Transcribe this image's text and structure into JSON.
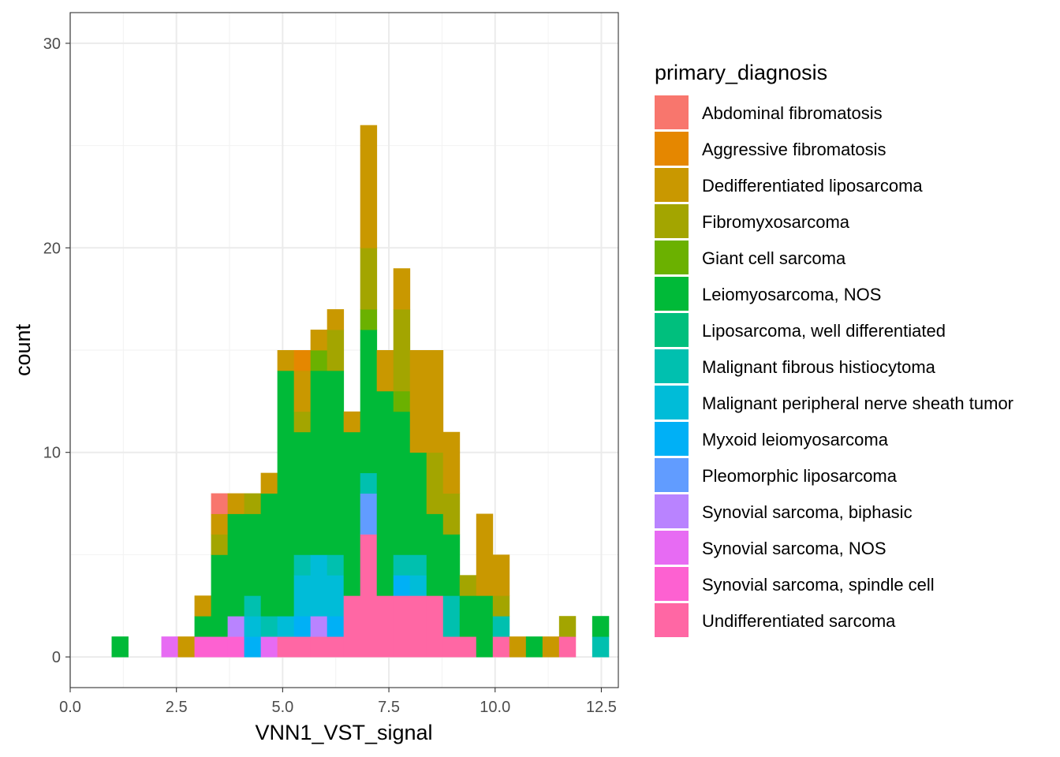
{
  "chart_data": {
    "type": "bar",
    "subtype": "stacked-histogram",
    "title": "",
    "xlabel": "VNN1_VST_signal",
    "ylabel": "count",
    "xlim": [
      0,
      12.9
    ],
    "ylim": [
      -1.5,
      31.5
    ],
    "grid": true,
    "legend_position": "right",
    "legend_title": "primary_diagnosis",
    "x_ticks": [
      0,
      2.5,
      5,
      7.5,
      10,
      12.5
    ],
    "x_tick_labels": [
      "0.0",
      "2.5",
      "5.0",
      "7.5",
      "10.0",
      "12.5"
    ],
    "y_ticks": [
      0,
      10,
      20,
      30
    ],
    "y_tick_labels": [
      "0",
      "10",
      "20",
      "30"
    ],
    "bin_width": 0.39,
    "bin_centers": [
      0.78,
      1.17,
      1.56,
      1.95,
      2.34,
      2.73,
      3.12,
      3.51,
      3.9,
      4.29,
      4.68,
      5.07,
      5.46,
      5.85,
      6.24,
      6.63,
      7.02,
      7.41,
      7.8,
      8.19,
      8.58,
      8.97,
      9.36,
      9.75,
      10.14,
      10.53,
      10.92,
      11.31,
      11.7,
      12.09,
      12.48
    ],
    "series": [
      {
        "name": "Abdominal fibromatosis",
        "color": "#F8766D",
        "values": [
          0,
          0,
          0,
          0,
          0,
          0,
          0,
          1,
          0,
          0,
          0,
          0,
          0,
          0,
          0,
          0,
          0,
          0,
          0,
          0,
          0,
          0,
          0,
          0,
          0,
          0,
          0,
          0,
          0,
          0,
          0
        ]
      },
      {
        "name": "Aggressive fibromatosis",
        "color": "#E58700",
        "values": [
          0,
          0,
          0,
          0,
          0,
          0,
          0,
          0,
          0,
          0,
          0,
          0,
          1,
          0,
          0,
          0,
          0,
          0,
          0,
          0,
          0,
          0,
          0,
          0,
          0,
          0,
          0,
          0,
          0,
          0,
          0
        ]
      },
      {
        "name": "Dedifferentiated liposarcoma",
        "color": "#C99800",
        "values": [
          0,
          0,
          0,
          0,
          0,
          1,
          1,
          1,
          1,
          0,
          1,
          1,
          2,
          1,
          1,
          1,
          6,
          2,
          2,
          5,
          5,
          3,
          0,
          4,
          2,
          1,
          0,
          1,
          0,
          0,
          0
        ]
      },
      {
        "name": "Fibromyxosarcoma",
        "color": "#A3A500",
        "values": [
          0,
          0,
          0,
          0,
          0,
          0,
          0,
          1,
          0,
          1,
          0,
          0,
          1,
          0,
          2,
          0,
          3,
          0,
          4,
          0,
          3,
          2,
          1,
          0,
          1,
          0,
          0,
          0,
          1,
          0,
          0
        ]
      },
      {
        "name": "Giant cell sarcoma",
        "color": "#6BB100",
        "values": [
          0,
          0,
          0,
          0,
          0,
          0,
          0,
          0,
          0,
          0,
          0,
          0,
          0,
          1,
          0,
          0,
          1,
          0,
          1,
          0,
          0,
          0,
          0,
          0,
          0,
          0,
          0,
          0,
          0,
          0,
          0
        ]
      },
      {
        "name": "Leiomyosarcoma, NOS",
        "color": "#00BA38",
        "values": [
          0,
          1,
          0,
          0,
          0,
          0,
          1,
          4,
          5,
          4,
          6,
          12,
          6,
          9,
          9,
          8,
          7,
          10,
          7,
          5,
          4,
          3,
          2,
          3,
          0,
          0,
          1,
          0,
          0,
          0,
          1
        ]
      },
      {
        "name": "Liposarcoma, well differentiated",
        "color": "#00BF7D",
        "values": [
          0,
          0,
          0,
          0,
          0,
          0,
          0,
          0,
          0,
          0,
          0,
          0,
          0,
          0,
          0,
          0,
          0,
          0,
          0,
          0,
          0,
          0,
          0,
          0,
          0,
          0,
          0,
          0,
          0,
          0,
          0
        ]
      },
      {
        "name": "Malignant fibrous histiocytoma",
        "color": "#00C0AF",
        "values": [
          0,
          0,
          0,
          0,
          0,
          0,
          0,
          0,
          0,
          1,
          1,
          0,
          1,
          0,
          1,
          0,
          1,
          0,
          1,
          1,
          0,
          2,
          0,
          0,
          1,
          0,
          0,
          0,
          0,
          0,
          1
        ]
      },
      {
        "name": "Malignant peripheral nerve sheath tumor",
        "color": "#00BCD8",
        "values": [
          0,
          0,
          0,
          0,
          0,
          0,
          0,
          0,
          0,
          1,
          0,
          1,
          2,
          3,
          2,
          0,
          0,
          0,
          0,
          1,
          0,
          0,
          0,
          0,
          0,
          0,
          0,
          0,
          0,
          0,
          0
        ]
      },
      {
        "name": "Myxoid leiomyosarcoma",
        "color": "#00B0F6",
        "values": [
          0,
          0,
          0,
          0,
          0,
          0,
          0,
          0,
          0,
          1,
          0,
          0,
          1,
          0,
          1,
          0,
          0,
          0,
          1,
          0,
          0,
          0,
          0,
          0,
          0,
          0,
          0,
          0,
          0,
          0,
          0
        ]
      },
      {
        "name": "Pleomorphic liposarcoma",
        "color": "#619CFF",
        "values": [
          0,
          0,
          0,
          0,
          0,
          0,
          0,
          0,
          0,
          0,
          0,
          0,
          0,
          0,
          0,
          0,
          2,
          0,
          0,
          0,
          0,
          0,
          0,
          0,
          0,
          0,
          0,
          0,
          0,
          0,
          0
        ]
      },
      {
        "name": "Synovial sarcoma, biphasic",
        "color": "#B983FF",
        "values": [
          0,
          0,
          0,
          0,
          0,
          0,
          0,
          0,
          1,
          0,
          0,
          0,
          0,
          1,
          0,
          0,
          0,
          0,
          0,
          0,
          0,
          0,
          0,
          0,
          0,
          0,
          0,
          0,
          0,
          0,
          0
        ]
      },
      {
        "name": "Synovial sarcoma, NOS",
        "color": "#E76BF3",
        "values": [
          0,
          0,
          0,
          0,
          1,
          0,
          0,
          0,
          0,
          0,
          1,
          0,
          0,
          0,
          0,
          0,
          0,
          0,
          0,
          0,
          0,
          0,
          0,
          0,
          0,
          0,
          0,
          0,
          0,
          0,
          0
        ]
      },
      {
        "name": "Synovial sarcoma, spindle cell",
        "color": "#FD61D1",
        "values": [
          0,
          0,
          0,
          0,
          0,
          0,
          1,
          1,
          1,
          0,
          0,
          0,
          0,
          0,
          0,
          0,
          0,
          0,
          0,
          0,
          0,
          0,
          0,
          0,
          0,
          0,
          0,
          0,
          0,
          0,
          0
        ]
      },
      {
        "name": "Undifferentiated sarcoma",
        "color": "#FF67A4",
        "values": [
          0,
          0,
          0,
          0,
          0,
          0,
          0,
          0,
          0,
          0,
          0,
          1,
          1,
          1,
          1,
          3,
          6,
          3,
          3,
          3,
          3,
          1,
          1,
          0,
          1,
          0,
          0,
          0,
          1,
          0,
          0
        ]
      }
    ]
  }
}
